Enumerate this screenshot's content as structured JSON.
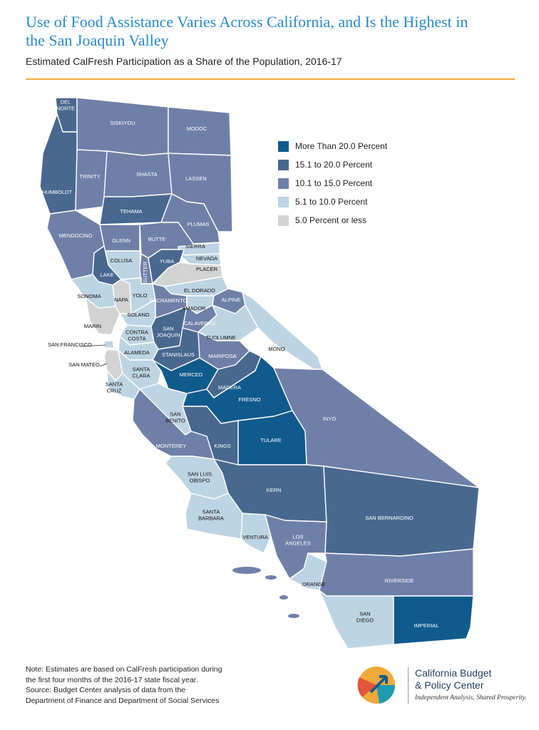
{
  "title": "Use of Food Assistance Varies Across California, and Is the Highest in the San Joaquin Valley",
  "subtitle": "Estimated CalFresh Participation as a Share of the Population, 2016-17",
  "legend": [
    {
      "label": "More Than 20.0 Percent",
      "color": "#0f5b8c"
    },
    {
      "label": "15.1 to 20.0 Percent",
      "color": "#48688f"
    },
    {
      "label": "10.1 to 15.0 Percent",
      "color": "#6f80a8"
    },
    {
      "label": "5.1 to 10.0 Percent",
      "color": "#bdd4e4"
    },
    {
      "label": "5.0 Percent or less",
      "color": "#d3d3d3"
    }
  ],
  "note": {
    "line1": "Note: Estimates are based on CalFresh participation during",
    "line2": "the first four months of the 2016-17 state fiscal year.",
    "line3": "Source: Budget Center analysis of data from the",
    "line4": "Department of Finance and Department of Social Services"
  },
  "org": {
    "line1": "California Budget",
    "line2": "& Policy Center",
    "tagline": "Independent Analysis. Shared Prosperity.",
    "logo_colors": [
      "#f2a93b",
      "#1e9bb0",
      "#e2553a",
      "#0f5b8c"
    ]
  },
  "counties": [
    {
      "name": "DEL NORTE",
      "label_lines": [
        "DEL",
        "NORTE"
      ],
      "category": 1
    },
    {
      "name": "SISKIYOU",
      "category": 2
    },
    {
      "name": "MODOC",
      "category": 2
    },
    {
      "name": "HUMBOLDT",
      "category": 1
    },
    {
      "name": "TRINITY",
      "category": 2
    },
    {
      "name": "SHASTA",
      "category": 2
    },
    {
      "name": "LASSEN",
      "category": 2
    },
    {
      "name": "TEHAMA",
      "category": 1
    },
    {
      "name": "PLUMAS",
      "category": 2
    },
    {
      "name": "MENDOCINO",
      "category": 2
    },
    {
      "name": "GLENN",
      "category": 2
    },
    {
      "name": "BUTTE",
      "category": 2
    },
    {
      "name": "SIERRA",
      "category": 3
    },
    {
      "name": "NEVADA",
      "category": 3
    },
    {
      "name": "COLUSA",
      "category": 3
    },
    {
      "name": "SUTTER",
      "category": 2
    },
    {
      "name": "YUBA",
      "category": 1
    },
    {
      "name": "PLACER",
      "category": 4
    },
    {
      "name": "LAKE",
      "category": 1
    },
    {
      "name": "SONOMA",
      "category": 3
    },
    {
      "name": "NAPA",
      "category": 4
    },
    {
      "name": "YOLO",
      "category": 3
    },
    {
      "name": "EL DORADO",
      "category": 3
    },
    {
      "name": "SACRAMENTO",
      "category": 2
    },
    {
      "name": "AMADOR",
      "category": 3
    },
    {
      "name": "ALPINE",
      "category": 2
    },
    {
      "name": "SOLANO",
      "category": 3
    },
    {
      "name": "MARIN",
      "category": 4
    },
    {
      "name": "CALAVERAS",
      "category": 2
    },
    {
      "name": "TUOLUMNE",
      "category": 3
    },
    {
      "name": "MONO",
      "category": 3
    },
    {
      "name": "CONTRA COSTA",
      "label_lines": [
        "CONTRA",
        "COSTA"
      ],
      "category": 3
    },
    {
      "name": "SAN JOAQUIN",
      "label_lines": [
        "SAN",
        "JOAQUIN"
      ],
      "category": 1
    },
    {
      "name": "SAN FRANCISCO",
      "category": 3
    },
    {
      "name": "ALAMEDA",
      "category": 3
    },
    {
      "name": "STANISLAUS",
      "category": 1
    },
    {
      "name": "MARIPOSA",
      "category": 2
    },
    {
      "name": "SAN MATEO",
      "category": 4
    },
    {
      "name": "SANTA CLARA",
      "label_lines": [
        "SANTA",
        "CLARA"
      ],
      "category": 3
    },
    {
      "name": "MERCED",
      "category": 0
    },
    {
      "name": "MADERA",
      "category": 1
    },
    {
      "name": "FRESNO",
      "category": 0
    },
    {
      "name": "INYO",
      "category": 2
    },
    {
      "name": "SANTA CRUZ",
      "label_lines": [
        "SANTA",
        "CRUZ"
      ],
      "category": 3
    },
    {
      "name": "SAN BENITO",
      "label_lines": [
        "SAN",
        "BENITO"
      ],
      "category": 3
    },
    {
      "name": "TULARE",
      "category": 0
    },
    {
      "name": "KINGS",
      "category": 1
    },
    {
      "name": "MONTEREY",
      "category": 2
    },
    {
      "name": "SAN LUIS OBISPO",
      "label_lines": [
        "SAN LUIS",
        "OBISPO"
      ],
      "category": 3
    },
    {
      "name": "KERN",
      "category": 1
    },
    {
      "name": "SAN BERNARDINO",
      "category": 1
    },
    {
      "name": "SANTA BARBARA",
      "label_lines": [
        "SANTA",
        "BARBARA"
      ],
      "category": 3
    },
    {
      "name": "VENTURA",
      "category": 3
    },
    {
      "name": "LOS ANGELES",
      "label_lines": [
        "LOS",
        "ANGELES"
      ],
      "category": 2
    },
    {
      "name": "ORANGE",
      "category": 3
    },
    {
      "name": "RIVERSIDE",
      "category": 2
    },
    {
      "name": "SAN DIEGO",
      "label_lines": [
        "SAN",
        "DIEGO"
      ],
      "category": 3
    },
    {
      "name": "IMPERIAL",
      "category": 0
    }
  ]
}
